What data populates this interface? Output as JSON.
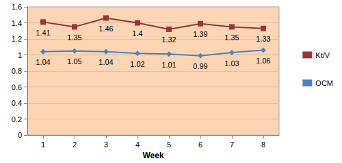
{
  "chart_data": {
    "type": "line",
    "x_label": "Week",
    "categories": [
      "1",
      "2",
      "3",
      "4",
      "5",
      "6",
      "7",
      "8"
    ],
    "series": [
      {
        "name": "Kt/V",
        "color": "#953735",
        "marker": "square",
        "values": [
          1.41,
          1.35,
          1.46,
          1.4,
          1.32,
          1.39,
          1.35,
          1.33
        ]
      },
      {
        "name": "OCM",
        "color": "#4f81bd",
        "marker": "diamond",
        "values": [
          1.04,
          1.05,
          1.04,
          1.02,
          1.01,
          0.99,
          1.03,
          1.06
        ]
      }
    ],
    "ylim": [
      0,
      1.6
    ],
    "yticks": [
      0,
      0.2,
      0.4,
      0.6,
      0.8,
      1,
      1.2,
      1.4,
      1.6
    ],
    "grid": true,
    "legend": "right",
    "data_labels": true
  }
}
